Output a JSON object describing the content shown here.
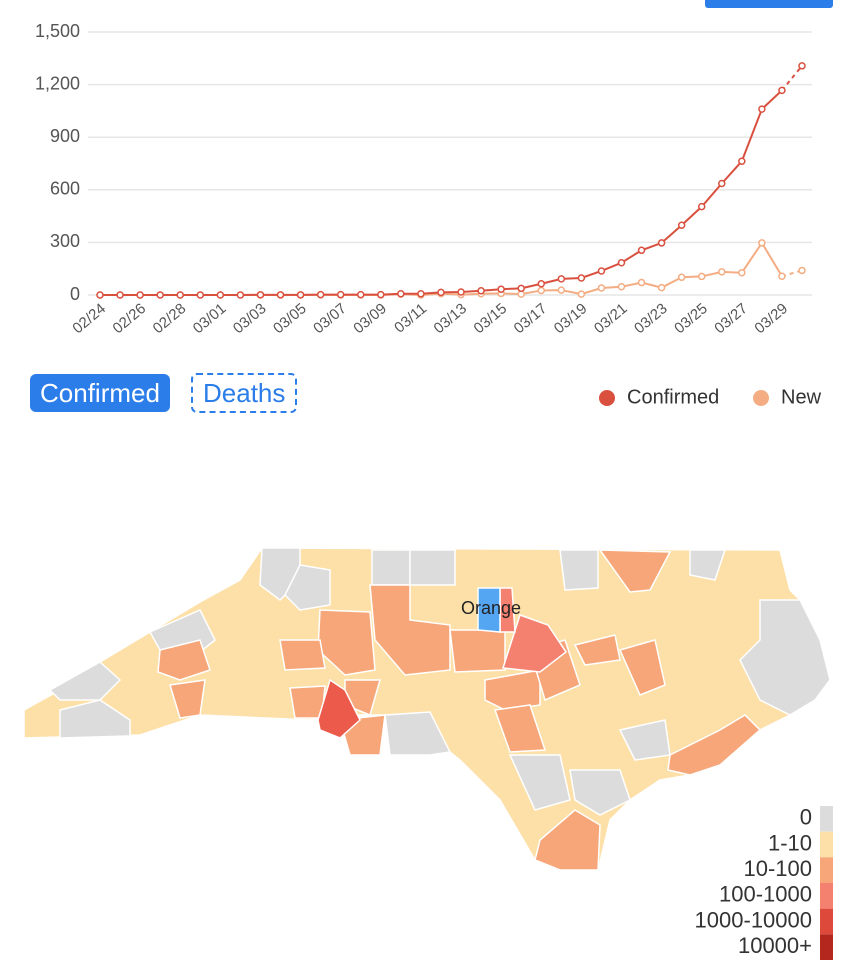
{
  "chart_data": {
    "type": "line",
    "categories": [
      "02/24",
      null,
      "02/26",
      null,
      "02/28",
      null,
      "03/01",
      null,
      "03/03",
      null,
      "03/05",
      null,
      "03/07",
      null,
      "03/09",
      null,
      "03/11",
      null,
      "03/13",
      null,
      "03/15",
      null,
      "03/17",
      null,
      "03/19",
      null,
      "03/21",
      null,
      "03/23",
      null,
      "03/25",
      null,
      "03/27",
      null,
      "03/29",
      null
    ],
    "series": [
      {
        "name": "Confirmed",
        "color": "#d9503f",
        "values": [
          0,
          0,
          0,
          0,
          0,
          0,
          0,
          0,
          1,
          1,
          1,
          2,
          2,
          2,
          2,
          7,
          7,
          15,
          17,
          24,
          33,
          38,
          64,
          92,
          97,
          137,
          184,
          255,
          297,
          398,
          504,
          636,
          763,
          1060,
          1167,
          1307
        ]
      },
      {
        "name": "New",
        "color": "#f4ad83",
        "values": [
          0,
          0,
          0,
          0,
          0,
          0,
          0,
          0,
          1,
          0,
          0,
          1,
          0,
          0,
          0,
          5,
          0,
          8,
          2,
          7,
          9,
          5,
          26,
          28,
          5,
          40,
          47,
          71,
          42,
          101,
          106,
          132,
          127,
          297,
          107,
          140
        ]
      }
    ],
    "ylim": [
      0,
      1500
    ],
    "yticks": [
      0,
      300,
      600,
      900,
      {
        "value": 1200,
        "label": "1,200"
      },
      {
        "value": 1500,
        "label": "1,500"
      }
    ],
    "grid": true
  },
  "buttons": [
    "Confirmed",
    "Deaths"
  ],
  "map": {
    "selected_label": "Orange",
    "legend": [
      {
        "label": "0",
        "color": "#dcdcdc"
      },
      {
        "label": "1-10",
        "color": "#fde0a8"
      },
      {
        "label": "10-100",
        "color": "#f6a678"
      },
      {
        "label": "100-1000",
        "color": "#f48070"
      },
      {
        "label": "1000-10000",
        "color": "#dd4a3c"
      },
      {
        "label": "10000+",
        "color": "#b3271e"
      }
    ]
  }
}
